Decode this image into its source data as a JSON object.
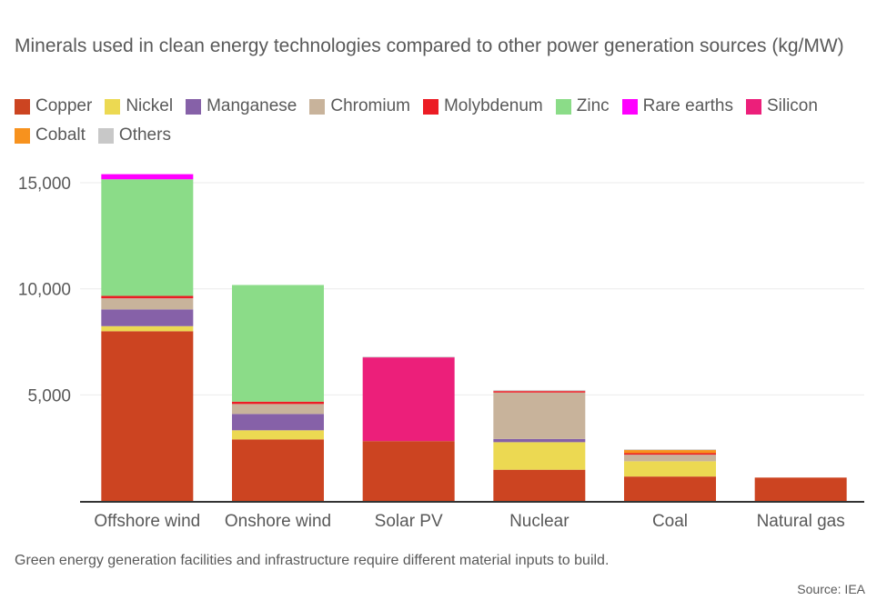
{
  "chart_data": {
    "type": "bar",
    "stacked": true,
    "title": "Minerals used in clean energy technologies compared to other power generation sources (kg/MW)",
    "xlabel": "",
    "ylabel": "",
    "ylim": [
      0,
      15500
    ],
    "yticks": [
      {
        "value": 5000,
        "label": "5,000"
      },
      {
        "value": 10000,
        "label": "10,000"
      },
      {
        "value": 15000,
        "label": "15,000"
      }
    ],
    "grid": true,
    "legend_position": "top-left",
    "categories": [
      "Offshore wind",
      "Onshore wind",
      "Solar PV",
      "Nuclear",
      "Coal",
      "Natural gas"
    ],
    "series": [
      {
        "name": "Copper",
        "color": "#cc4421",
        "values": [
          8000,
          2900,
          2820,
          1470,
          1150,
          1100
        ]
      },
      {
        "name": "Nickel",
        "color": "#ecd952",
        "values": [
          240,
          430,
          0,
          1300,
          720,
          0
        ]
      },
      {
        "name": "Manganese",
        "color": "#8661a8",
        "values": [
          790,
          770,
          0,
          150,
          0,
          0
        ]
      },
      {
        "name": "Chromium",
        "color": "#c8b39b",
        "values": [
          525,
          470,
          0,
          2190,
          310,
          0
        ]
      },
      {
        "name": "Molybdenum",
        "color": "#ec1c24",
        "values": [
          110,
          110,
          0,
          70,
          70,
          0
        ]
      },
      {
        "name": "Zinc",
        "color": "#8bdc88",
        "values": [
          5500,
          5500,
          0,
          0,
          0,
          0
        ]
      },
      {
        "name": "Rare earths",
        "color": "#ff00ff",
        "values": [
          240,
          0,
          0,
          0,
          0,
          0
        ]
      },
      {
        "name": "Silicon",
        "color": "#ec1f7a",
        "values": [
          0,
          0,
          3950,
          0,
          0,
          0
        ]
      },
      {
        "name": "Cobalt",
        "color": "#f7921e",
        "values": [
          0,
          0,
          0,
          0,
          150,
          0
        ]
      },
      {
        "name": "Others",
        "color": "#c8c8c8",
        "values": [
          0,
          0,
          30,
          40,
          30,
          0
        ]
      }
    ]
  },
  "caption": "Green energy generation facilities and infrastructure require different material inputs to build.",
  "source": "Source: IEA"
}
